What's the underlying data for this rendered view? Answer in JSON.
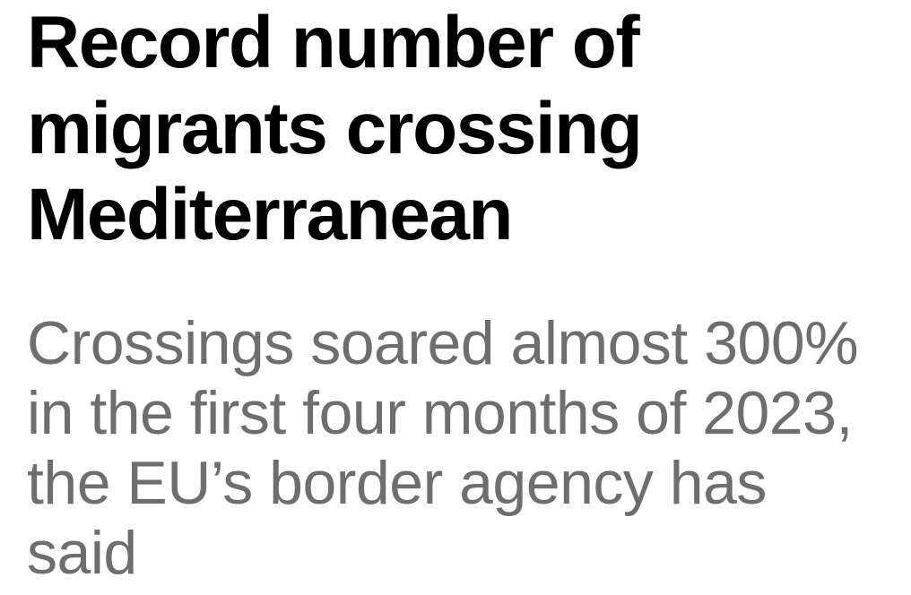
{
  "article": {
    "headline": "Record number of migrants crossing Mediterranean",
    "standfirst": "Crossings soared almost 300% in the first four months of 2023, the EU’s border agency has said"
  },
  "colors": {
    "headline": "#000000",
    "standfirst": "#6e6e6e",
    "background": "#ffffff"
  }
}
